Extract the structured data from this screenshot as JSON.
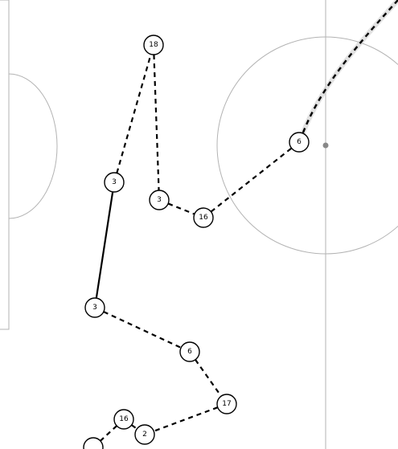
{
  "colors": {
    "background": "#ffffff",
    "field_lines": "#b3b3b3",
    "pass": "#000000",
    "node_fill": "#ffffff"
  },
  "players": [
    {
      "id": "p18",
      "number": "18"
    },
    {
      "id": "p3a",
      "number": "3"
    },
    {
      "id": "p3b",
      "number": "3"
    },
    {
      "id": "p16a",
      "number": "16"
    },
    {
      "id": "p6a",
      "number": "6"
    },
    {
      "id": "p3c",
      "number": "3"
    },
    {
      "id": "p6b",
      "number": "6"
    },
    {
      "id": "p17",
      "number": "17"
    },
    {
      "id": "p16b",
      "number": "16"
    },
    {
      "id": "p2",
      "number": "2"
    }
  ],
  "passes": [
    {
      "from": "p3a",
      "to": "p18",
      "style": "dashed"
    },
    {
      "from": "p18",
      "to": "p3b",
      "style": "dashed"
    },
    {
      "from": "p3b",
      "to": "p16a",
      "style": "dashed"
    },
    {
      "from": "p16a",
      "to": "p6a",
      "style": "dashed"
    },
    {
      "from": "p3a",
      "to": "p3c",
      "style": "solid"
    },
    {
      "from": "p3c",
      "to": "p6b",
      "style": "dashed"
    },
    {
      "from": "p6b",
      "to": "p17",
      "style": "dashed"
    },
    {
      "from": "p17",
      "to": "p2",
      "style": "dashed"
    },
    {
      "from": "p16b",
      "to": "p2",
      "style": "dashed"
    }
  ]
}
